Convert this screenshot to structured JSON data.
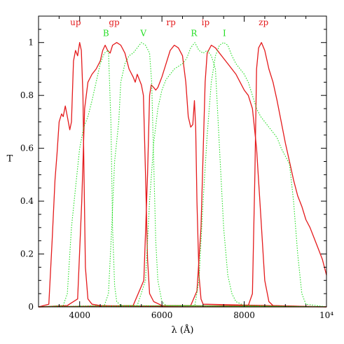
{
  "chart_data": {
    "type": "line",
    "title": "",
    "xlabel": "λ (Å)",
    "ylabel": "T",
    "xlim": [
      3000,
      10000
    ],
    "ylim": [
      0,
      1.1
    ],
    "x_ticks": [
      4000,
      6000,
      8000,
      10000
    ],
    "x_tick_labels": [
      "4000",
      "6000",
      "8000",
      "10⁴"
    ],
    "y_ticks": [
      0,
      0.2,
      0.4,
      0.6,
      0.8,
      1
    ],
    "y_tick_labels": [
      "0",
      "0.2",
      "0.4",
      "0.6",
      "0.8",
      "1"
    ],
    "grid": false,
    "colors": {
      "sdss": "#e41a1c",
      "johnson": "#22dd22"
    },
    "band_labels": [
      {
        "text": "up",
        "x": 3900,
        "y": 1.065,
        "group": "sdss"
      },
      {
        "text": "gp",
        "x": 4840,
        "y": 1.065,
        "group": "sdss"
      },
      {
        "text": "rp",
        "x": 6220,
        "y": 1.065,
        "group": "sdss"
      },
      {
        "text": "ip",
        "x": 7060,
        "y": 1.065,
        "group": "sdss"
      },
      {
        "text": "zp",
        "x": 8470,
        "y": 1.065,
        "group": "sdss"
      },
      {
        "text": "B",
        "x": 4640,
        "y": 1.025,
        "group": "johnson"
      },
      {
        "text": "V",
        "x": 5550,
        "y": 1.025,
        "group": "johnson"
      },
      {
        "text": "R",
        "x": 6780,
        "y": 1.025,
        "group": "johnson"
      },
      {
        "text": "I",
        "x": 7520,
        "y": 1.025,
        "group": "johnson"
      }
    ],
    "series": [
      {
        "group": "sdss",
        "style": "solid",
        "points": [
          [
            3000,
            0
          ],
          [
            3250,
            0.01
          ],
          [
            3330,
            0.25
          ],
          [
            3400,
            0.48
          ],
          [
            3450,
            0.58
          ],
          [
            3500,
            0.7
          ],
          [
            3560,
            0.73
          ],
          [
            3600,
            0.72
          ],
          [
            3650,
            0.76
          ],
          [
            3700,
            0.72
          ],
          [
            3760,
            0.67
          ],
          [
            3800,
            0.7
          ],
          [
            3850,
            0.93
          ],
          [
            3900,
            0.97
          ],
          [
            3950,
            0.95
          ],
          [
            4000,
            1.0
          ],
          [
            4040,
            0.97
          ],
          [
            4080,
            0.8
          ],
          [
            4110,
            0.45
          ],
          [
            4140,
            0.15
          ],
          [
            4200,
            0.03
          ],
          [
            4300,
            0.01
          ],
          [
            4500,
            0.005
          ],
          [
            6000,
            0.0
          ],
          [
            10000,
            0.0
          ]
        ]
      },
      {
        "group": "sdss",
        "style": "solid",
        "points": [
          [
            3000,
            0
          ],
          [
            3700,
            0.005
          ],
          [
            3950,
            0.03
          ],
          [
            4050,
            0.4
          ],
          [
            4120,
            0.75
          ],
          [
            4200,
            0.85
          ],
          [
            4300,
            0.88
          ],
          [
            4400,
            0.9
          ],
          [
            4500,
            0.93
          ],
          [
            4560,
            0.97
          ],
          [
            4620,
            0.99
          ],
          [
            4680,
            0.97
          ],
          [
            4740,
            0.96
          ],
          [
            4800,
            0.99
          ],
          [
            4900,
            1.0
          ],
          [
            5000,
            0.99
          ],
          [
            5100,
            0.96
          ],
          [
            5200,
            0.9
          ],
          [
            5300,
            0.87
          ],
          [
            5350,
            0.85
          ],
          [
            5400,
            0.88
          ],
          [
            5450,
            0.86
          ],
          [
            5500,
            0.84
          ],
          [
            5550,
            0.8
          ],
          [
            5600,
            0.5
          ],
          [
            5650,
            0.18
          ],
          [
            5700,
            0.05
          ],
          [
            5800,
            0.02
          ],
          [
            6000,
            0.005
          ],
          [
            10000,
            0.0
          ]
        ]
      },
      {
        "group": "sdss",
        "style": "solid",
        "points": [
          [
            3000,
            0
          ],
          [
            5300,
            0.005
          ],
          [
            5560,
            0.1
          ],
          [
            5650,
            0.5
          ],
          [
            5700,
            0.8
          ],
          [
            5740,
            0.84
          ],
          [
            5800,
            0.83
          ],
          [
            5850,
            0.82
          ],
          [
            5900,
            0.83
          ],
          [
            6000,
            0.87
          ],
          [
            6100,
            0.92
          ],
          [
            6200,
            0.97
          ],
          [
            6300,
            0.99
          ],
          [
            6400,
            0.98
          ],
          [
            6500,
            0.95
          ],
          [
            6580,
            0.85
          ],
          [
            6640,
            0.72
          ],
          [
            6700,
            0.68
          ],
          [
            6750,
            0.69
          ],
          [
            6790,
            0.78
          ],
          [
            6820,
            0.68
          ],
          [
            6850,
            0.4
          ],
          [
            6900,
            0.12
          ],
          [
            6950,
            0.03
          ],
          [
            7000,
            0.01
          ],
          [
            10000,
            0.0
          ]
        ]
      },
      {
        "group": "sdss",
        "style": "solid",
        "points": [
          [
            3000,
            0
          ],
          [
            6700,
            0.005
          ],
          [
            6850,
            0.06
          ],
          [
            6950,
            0.3
          ],
          [
            7050,
            0.85
          ],
          [
            7100,
            0.96
          ],
          [
            7200,
            0.99
          ],
          [
            7300,
            0.98
          ],
          [
            7400,
            0.96
          ],
          [
            7500,
            0.94
          ],
          [
            7600,
            0.92
          ],
          [
            7700,
            0.9
          ],
          [
            7800,
            0.88
          ],
          [
            7900,
            0.85
          ],
          [
            8000,
            0.82
          ],
          [
            8100,
            0.8
          ],
          [
            8200,
            0.75
          ],
          [
            8300,
            0.6
          ],
          [
            8400,
            0.35
          ],
          [
            8500,
            0.1
          ],
          [
            8600,
            0.02
          ],
          [
            8700,
            0.005
          ],
          [
            10000,
            0.0
          ]
        ]
      },
      {
        "group": "sdss",
        "style": "solid",
        "points": [
          [
            3000,
            0
          ],
          [
            8100,
            0.005
          ],
          [
            8200,
            0.05
          ],
          [
            8260,
            0.5
          ],
          [
            8300,
            0.9
          ],
          [
            8350,
            0.98
          ],
          [
            8420,
            1.0
          ],
          [
            8500,
            0.97
          ],
          [
            8600,
            0.9
          ],
          [
            8700,
            0.85
          ],
          [
            8800,
            0.78
          ],
          [
            8900,
            0.7
          ],
          [
            9000,
            0.62
          ],
          [
            9100,
            0.55
          ],
          [
            9200,
            0.48
          ],
          [
            9300,
            0.42
          ],
          [
            9400,
            0.38
          ],
          [
            9500,
            0.33
          ],
          [
            9600,
            0.3
          ],
          [
            9700,
            0.26
          ],
          [
            9800,
            0.22
          ],
          [
            9900,
            0.18
          ],
          [
            10000,
            0.12
          ]
        ]
      },
      {
        "group": "johnson",
        "style": "dotted",
        "points": [
          [
            3000,
            0
          ],
          [
            3600,
            0.005
          ],
          [
            3700,
            0.05
          ],
          [
            3800,
            0.3
          ],
          [
            3900,
            0.45
          ],
          [
            4000,
            0.6
          ],
          [
            4100,
            0.68
          ],
          [
            4200,
            0.72
          ],
          [
            4300,
            0.78
          ],
          [
            4400,
            0.85
          ],
          [
            4500,
            0.92
          ],
          [
            4600,
            0.96
          ],
          [
            4700,
            0.97
          ],
          [
            4760,
            0.7
          ],
          [
            4800,
            0.3
          ],
          [
            4850,
            0.08
          ],
          [
            4900,
            0.02
          ],
          [
            5000,
            0.005
          ],
          [
            10000,
            0.0
          ]
        ]
      },
      {
        "group": "johnson",
        "style": "dotted",
        "points": [
          [
            3000,
            0
          ],
          [
            4600,
            0.005
          ],
          [
            4700,
            0.05
          ],
          [
            4780,
            0.3
          ],
          [
            4850,
            0.55
          ],
          [
            4950,
            0.7
          ],
          [
            5000,
            0.85
          ],
          [
            5100,
            0.92
          ],
          [
            5200,
            0.95
          ],
          [
            5300,
            0.96
          ],
          [
            5400,
            0.98
          ],
          [
            5500,
            1.0
          ],
          [
            5600,
            0.99
          ],
          [
            5700,
            0.96
          ],
          [
            5750,
            0.85
          ],
          [
            5800,
            0.55
          ],
          [
            5850,
            0.25
          ],
          [
            5900,
            0.1
          ],
          [
            6000,
            0.02
          ],
          [
            6100,
            0.005
          ],
          [
            10000,
            0.0
          ]
        ]
      },
      {
        "group": "johnson",
        "style": "dotted",
        "points": [
          [
            3000,
            0
          ],
          [
            5400,
            0.005
          ],
          [
            5600,
            0.1
          ],
          [
            5700,
            0.4
          ],
          [
            5800,
            0.62
          ],
          [
            5900,
            0.75
          ],
          [
            6000,
            0.82
          ],
          [
            6100,
            0.86
          ],
          [
            6200,
            0.88
          ],
          [
            6300,
            0.9
          ],
          [
            6400,
            0.91
          ],
          [
            6500,
            0.92
          ],
          [
            6600,
            0.94
          ],
          [
            6700,
            0.98
          ],
          [
            6800,
            1.0
          ],
          [
            6900,
            0.97
          ],
          [
            7000,
            0.96
          ],
          [
            7100,
            0.97
          ],
          [
            7200,
            0.95
          ],
          [
            7300,
            0.9
          ],
          [
            7400,
            0.6
          ],
          [
            7500,
            0.3
          ],
          [
            7600,
            0.12
          ],
          [
            7700,
            0.05
          ],
          [
            7800,
            0.02
          ],
          [
            8000,
            0.005
          ],
          [
            10000,
            0.0
          ]
        ]
      },
      {
        "group": "johnson",
        "style": "dotted",
        "points": [
          [
            3000,
            0
          ],
          [
            6800,
            0.005
          ],
          [
            6900,
            0.1
          ],
          [
            7000,
            0.4
          ],
          [
            7100,
            0.65
          ],
          [
            7200,
            0.85
          ],
          [
            7300,
            0.95
          ],
          [
            7400,
            0.99
          ],
          [
            7500,
            1.0
          ],
          [
            7600,
            0.99
          ],
          [
            7700,
            0.95
          ],
          [
            7800,
            0.92
          ],
          [
            7900,
            0.9
          ],
          [
            8000,
            0.88
          ],
          [
            8100,
            0.85
          ],
          [
            8200,
            0.8
          ],
          [
            8300,
            0.75
          ],
          [
            8400,
            0.72
          ],
          [
            8500,
            0.7
          ],
          [
            8600,
            0.68
          ],
          [
            8700,
            0.66
          ],
          [
            8800,
            0.64
          ],
          [
            8900,
            0.6
          ],
          [
            9000,
            0.57
          ],
          [
            9100,
            0.54
          ],
          [
            9200,
            0.4
          ],
          [
            9300,
            0.2
          ],
          [
            9400,
            0.05
          ],
          [
            9500,
            0.01
          ],
          [
            10000,
            0.0
          ]
        ]
      }
    ]
  }
}
